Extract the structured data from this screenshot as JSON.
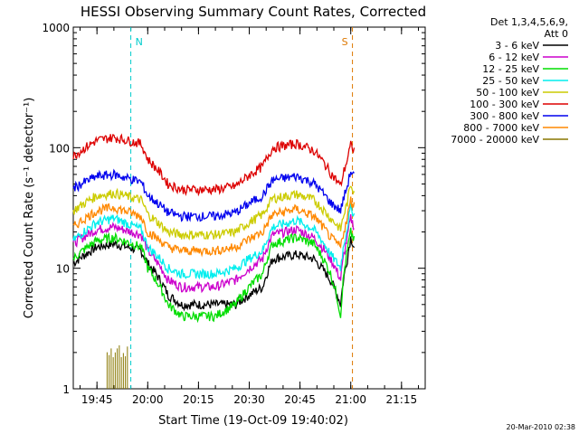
{
  "chart_data": {
    "type": "line",
    "title": "HESSI Observing Summary Count Rates, Corrected",
    "xlabel": "Start Time (19-Oct-09 19:40:02)",
    "ylabel": "Corrected Count Rate (s⁻¹ detector⁻¹)",
    "yscale": "log",
    "ylim": [
      1,
      1000
    ],
    "xlim_minutes": [
      -2,
      102
    ],
    "x_ticks": [
      {
        "label": "19:45",
        "minutes": 5
      },
      {
        "label": "20:00",
        "minutes": 20
      },
      {
        "label": "20:15",
        "minutes": 35
      },
      {
        "label": "20:30",
        "minutes": 50
      },
      {
        "label": "20:45",
        "minutes": 65
      },
      {
        "label": "21:00",
        "minutes": 80
      },
      {
        "label": "21:15",
        "minutes": 95
      }
    ],
    "y_ticks": [
      {
        "label": "1",
        "value": 1
      },
      {
        "label": "10",
        "value": 10
      },
      {
        "label": "100",
        "value": 100
      },
      {
        "label": "1000",
        "value": 1000
      }
    ],
    "legend_header": [
      "Det 1,3,4,5,6,9,",
      "Att 0"
    ],
    "series": [
      {
        "name": "3 - 6 keV",
        "color": "#000000",
        "x": [
          -2,
          5,
          10,
          18,
          20,
          26,
          30,
          40,
          46,
          54,
          57,
          64,
          69,
          74,
          77,
          79,
          80,
          81
        ],
        "y": [
          11,
          15,
          16,
          14,
          11,
          6,
          5,
          5,
          5,
          7,
          12,
          13,
          12,
          8,
          5,
          12,
          18,
          15
        ]
      },
      {
        "name": "6 - 12 keV",
        "color": "#cc00cc",
        "x": [
          -2,
          5,
          10,
          18,
          20,
          26,
          30,
          40,
          46,
          54,
          57,
          64,
          69,
          74,
          77,
          79,
          80,
          81
        ],
        "y": [
          16,
          21,
          22,
          19,
          14,
          8,
          7,
          7,
          8,
          12,
          19,
          21,
          18,
          12,
          8,
          18,
          26,
          22
        ]
      },
      {
        "name": "12 - 25 keV",
        "color": "#00dd00",
        "x": [
          -2,
          5,
          10,
          18,
          20,
          26,
          30,
          40,
          46,
          54,
          57,
          64,
          69,
          74,
          77,
          79,
          80,
          81
        ],
        "y": [
          12,
          17,
          18,
          15,
          10,
          5,
          4,
          4,
          5,
          9,
          16,
          18,
          16,
          9,
          4,
          14,
          20,
          17
        ]
      },
      {
        "name": "25 - 50 keV",
        "color": "#00eeee",
        "x": [
          -2,
          5,
          10,
          18,
          20,
          26,
          30,
          40,
          46,
          54,
          57,
          64,
          69,
          74,
          77,
          79,
          80,
          81
        ],
        "y": [
          17,
          24,
          26,
          21,
          15,
          10,
          9,
          9,
          10,
          14,
          22,
          25,
          21,
          13,
          10,
          22,
          32,
          28
        ]
      },
      {
        "name": "50 - 100 keV",
        "color": "#cccc00",
        "x": [
          -2,
          5,
          10,
          18,
          20,
          26,
          30,
          40,
          46,
          54,
          57,
          64,
          69,
          74,
          77,
          79,
          80,
          81
        ],
        "y": [
          30,
          40,
          42,
          37,
          28,
          20,
          19,
          19,
          20,
          28,
          38,
          41,
          37,
          26,
          21,
          35,
          50,
          44
        ]
      },
      {
        "name": "100 - 300 keV",
        "color": "#dd0000",
        "x": [
          -2,
          5,
          10,
          18,
          20,
          26,
          30,
          40,
          46,
          54,
          57,
          64,
          69,
          74,
          77,
          79,
          80,
          81
        ],
        "y": [
          85,
          115,
          122,
          108,
          80,
          50,
          45,
          45,
          48,
          70,
          100,
          108,
          95,
          62,
          48,
          80,
          105,
          95
        ]
      },
      {
        "name": "300 - 800 keV",
        "color": "#0000ee",
        "x": [
          -2,
          5,
          10,
          18,
          20,
          26,
          30,
          40,
          46,
          54,
          57,
          64,
          69,
          74,
          77,
          79,
          80,
          81
        ],
        "y": [
          46,
          58,
          60,
          52,
          40,
          29,
          27,
          27,
          29,
          40,
          54,
          58,
          51,
          35,
          30,
          48,
          64,
          58
        ]
      },
      {
        "name": "800 - 7000 keV",
        "color": "#ff8800",
        "x": [
          -2,
          5,
          10,
          18,
          20,
          26,
          30,
          40,
          46,
          54,
          57,
          64,
          69,
          74,
          77,
          79,
          80,
          81
        ],
        "y": [
          22,
          30,
          32,
          27,
          20,
          15,
          14,
          14,
          15,
          20,
          28,
          31,
          27,
          18,
          15,
          26,
          37,
          33
        ]
      },
      {
        "name": "7000 - 20000 keV",
        "color": "#887700",
        "x": [
          8,
          14
        ],
        "y": [
          2,
          2
        ]
      }
    ],
    "markers": [
      {
        "label": "N",
        "minutes": 15,
        "color": "#00cccc"
      },
      {
        "label": "S",
        "minutes": 80.5,
        "color": "#dd7700"
      }
    ],
    "footer_timestamp": "20-Mar-2010 02:38"
  }
}
